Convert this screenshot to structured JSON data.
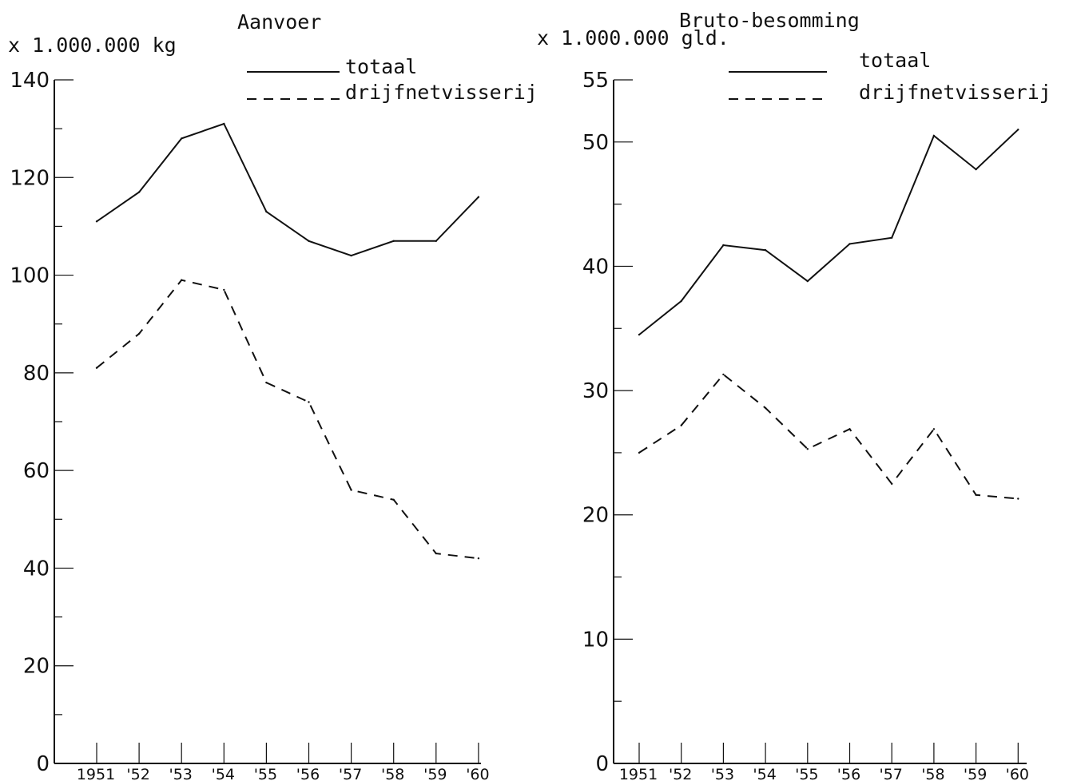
{
  "chart_data": [
    {
      "type": "line",
      "title": "Aanvoer",
      "ylabel": "x 1.000.000 kg",
      "x": [
        "1951",
        "'52",
        "'53",
        "'54",
        "'55",
        "'56",
        "'57",
        "'58",
        "'59",
        "'60"
      ],
      "ylim": [
        0,
        140
      ],
      "yticks": [
        0,
        20,
        40,
        60,
        80,
        100,
        120,
        140
      ],
      "grid": false,
      "legend_position": "top",
      "series": [
        {
          "name": "totaal",
          "style": "solid",
          "values": [
            111,
            117,
            128,
            131,
            113,
            107,
            104,
            107,
            107,
            116
          ]
        },
        {
          "name": "drijfnetvisserij",
          "style": "dashed",
          "values": [
            81,
            88,
            99,
            97,
            78,
            74,
            56,
            54,
            43,
            42
          ]
        }
      ]
    },
    {
      "type": "line",
      "title": "Bruto-besomming",
      "ylabel": "x 1.000.000 gld.",
      "x": [
        "1951",
        "'52",
        "'53",
        "'54",
        "'55",
        "'56",
        "'57",
        "'58",
        "'59",
        "'60"
      ],
      "ylim": [
        0,
        55
      ],
      "yticks": [
        0,
        10,
        20,
        30,
        40,
        50,
        55
      ],
      "grid": false,
      "legend_position": "top",
      "series": [
        {
          "name": "totaal",
          "style": "solid",
          "values": [
            34.5,
            37.2,
            41.7,
            41.3,
            38.8,
            41.8,
            42.3,
            50.5,
            47.8,
            51
          ]
        },
        {
          "name": "drijfnetvisserij",
          "style": "dashed",
          "values": [
            25,
            27.2,
            31.3,
            28.6,
            25.3,
            26.9,
            22.5,
            26.9,
            21.6,
            21.3
          ]
        }
      ]
    }
  ]
}
